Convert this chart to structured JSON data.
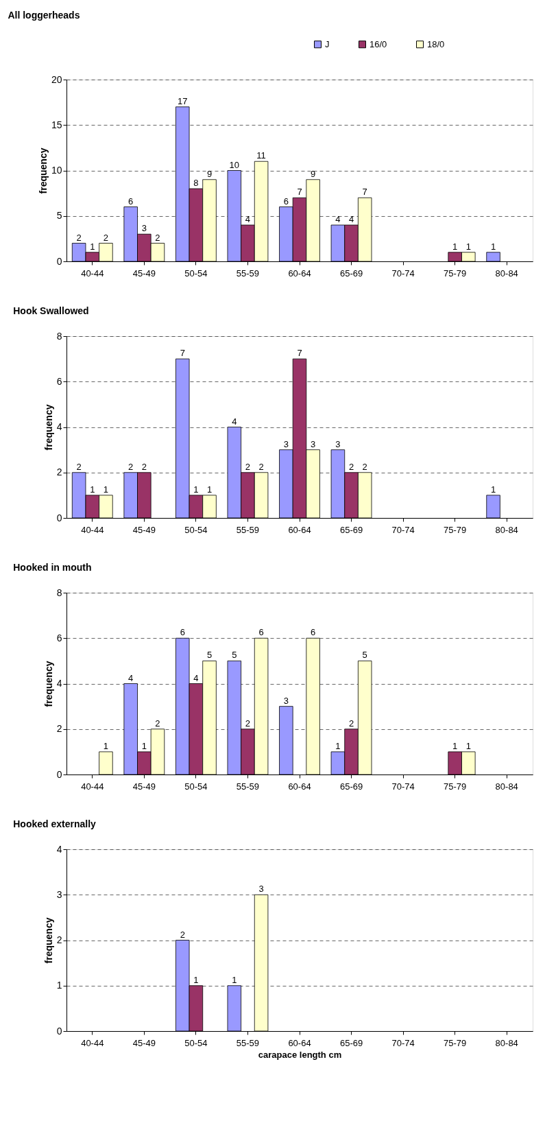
{
  "chart_data": [
    {
      "type": "bar",
      "title": "All loggerheads",
      "ylabel": "frequency",
      "categories": [
        "40-44",
        "45-49",
        "50-54",
        "55-59",
        "60-64",
        "65-69",
        "70-74",
        "75-79",
        "80-84"
      ],
      "series": [
        {
          "name": "J",
          "color": "#9999ff",
          "values": [
            2,
            6,
            17,
            10,
            6,
            4,
            null,
            null,
            1
          ]
        },
        {
          "name": "16/0",
          "color": "#993366",
          "values": [
            1,
            3,
            8,
            4,
            7,
            4,
            null,
            1,
            null
          ]
        },
        {
          "name": "18/0",
          "color": "#ffffcc",
          "values": [
            2,
            2,
            9,
            11,
            9,
            7,
            null,
            1,
            null
          ]
        }
      ],
      "ylim": [
        0,
        20
      ],
      "yticks": [
        0,
        5,
        10,
        15,
        20
      ],
      "grid": "y",
      "legend": "top right",
      "data_labels": true
    },
    {
      "type": "bar",
      "title": "Hook Swallowed",
      "ylabel": "frequency",
      "categories": [
        "40-44",
        "45-49",
        "50-54",
        "55-59",
        "60-64",
        "65-69",
        "70-74",
        "75-79",
        "80-84"
      ],
      "series": [
        {
          "color": "#9999ff",
          "values": [
            2,
            2,
            7,
            4,
            3,
            3,
            null,
            null,
            1
          ]
        },
        {
          "color": "#993366",
          "values": [
            1,
            2,
            1,
            2,
            7,
            2,
            null,
            null,
            null
          ]
        },
        {
          "color": "#ffffcc",
          "values": [
            1,
            null,
            1,
            2,
            3,
            2,
            null,
            null,
            null
          ]
        }
      ],
      "ylim": [
        0,
        8
      ],
      "yticks": [
        0,
        2,
        4,
        6,
        8
      ],
      "grid": "y",
      "data_labels": true
    },
    {
      "type": "bar",
      "title": "Hooked in mouth",
      "ylabel": "frequency",
      "categories": [
        "40-44",
        "45-49",
        "50-54",
        "55-59",
        "60-64",
        "65-69",
        "70-74",
        "75-79",
        "80-84"
      ],
      "series": [
        {
          "color": "#9999ff",
          "values": [
            null,
            4,
            6,
            5,
            3,
            1,
            null,
            null,
            null
          ]
        },
        {
          "color": "#993366",
          "values": [
            null,
            1,
            4,
            2,
            null,
            2,
            null,
            1,
            null
          ]
        },
        {
          "color": "#ffffcc",
          "values": [
            1,
            2,
            5,
            6,
            6,
            5,
            null,
            1,
            null
          ]
        }
      ],
      "ylim": [
        0,
        8
      ],
      "yticks": [
        0,
        2,
        4,
        6,
        8
      ],
      "grid": "y",
      "data_labels": true
    },
    {
      "type": "bar",
      "title": "Hooked externally",
      "ylabel": "frequency",
      "xlabel": "carapace length cm",
      "categories": [
        "40-44",
        "45-49",
        "50-54",
        "55-59",
        "60-64",
        "65-69",
        "70-74",
        "75-79",
        "80-84"
      ],
      "series": [
        {
          "color": "#9999ff",
          "values": [
            null,
            null,
            2,
            1,
            null,
            null,
            null,
            null,
            null
          ]
        },
        {
          "color": "#993366",
          "values": [
            null,
            null,
            1,
            null,
            null,
            null,
            null,
            null,
            null
          ]
        },
        {
          "color": "#ffffcc",
          "values": [
            null,
            null,
            null,
            3,
            null,
            null,
            null,
            null,
            null
          ]
        }
      ],
      "ylim": [
        0,
        4
      ],
      "yticks": [
        0,
        1,
        2,
        3,
        4
      ],
      "grid": "y",
      "data_labels": true
    }
  ]
}
